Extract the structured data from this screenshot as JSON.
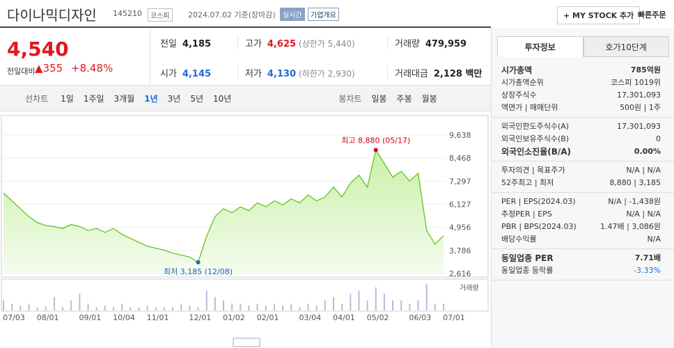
{
  "header": {
    "name": "다이나믹디자인",
    "code": "145210",
    "market": "코스피",
    "date": "2024.07.02 기준(장마감)",
    "realtime": "실시간",
    "company": "기업개요",
    "mystock": "+ MY STOCK 추가",
    "quick": "빠른주문"
  },
  "price": {
    "now": "4,540",
    "change_label": "전일대비",
    "change": "355",
    "pct": "+8.48%"
  },
  "quotes": [
    {
      "label": "전일",
      "value": "4,185"
    },
    {
      "label": "고가",
      "value": "4,625",
      "extra": "(상한가 5,440)"
    },
    {
      "label": "거래량",
      "value": "479,959"
    },
    {
      "label": "시가",
      "value": "4,145"
    },
    {
      "label": "저가",
      "value": "4,130",
      "extra": "(하한가 2,930)"
    },
    {
      "label": "거래대금",
      "value": "2,128 백만"
    }
  ],
  "tabs": {
    "line_label": "선차트",
    "line": [
      "1일",
      "1주일",
      "3개월",
      "1년",
      "3년",
      "5년",
      "10년"
    ],
    "candle_label": "봉차트",
    "candle": [
      "일봉",
      "주봉",
      "월봉"
    ]
  },
  "chart_data": {
    "type": "line",
    "color": "#63c322",
    "categories": [
      "07/03",
      null,
      null,
      null,
      "08/01",
      null,
      null,
      null,
      null,
      "09/01",
      null,
      null,
      null,
      "10/04",
      null,
      null,
      null,
      "11/01",
      null,
      null,
      null,
      null,
      "12/01",
      null,
      null,
      null,
      "01/02",
      null,
      null,
      null,
      "02/01",
      null,
      null,
      null,
      null,
      "03/04",
      null,
      null,
      null,
      "04/01",
      null,
      null,
      null,
      "05/02",
      null,
      null,
      null,
      null,
      "06/03",
      null,
      null,
      null,
      "07/01"
    ],
    "values": [
      6700,
      6300,
      5900,
      5500,
      5200,
      5050,
      5000,
      4900,
      5100,
      5000,
      4800,
      4900,
      4700,
      4900,
      4600,
      4400,
      4200,
      4000,
      3900,
      3800,
      3650,
      3550,
      3450,
      3185,
      4500,
      5500,
      5900,
      5700,
      6000,
      5800,
      6200,
      6000,
      6300,
      6100,
      6400,
      6200,
      6600,
      6300,
      6500,
      7000,
      6500,
      7200,
      7600,
      7000,
      8880,
      8200,
      7500,
      7800,
      7300,
      7700,
      4800,
      4100,
      4540
    ],
    "volume": [
      3,
      2,
      1.5,
      2,
      1,
      1.2,
      4,
      1,
      3,
      5,
      2,
      1,
      1.5,
      1,
      2,
      1,
      1,
      1.5,
      1,
      1,
      1,
      2,
      1.5,
      1,
      6,
      4,
      3,
      2,
      2,
      1.5,
      2,
      1.5,
      2,
      1.5,
      2,
      1,
      2,
      1.5,
      3,
      4,
      2,
      5,
      6,
      3,
      7,
      5,
      3,
      3,
      2,
      3,
      8,
      2,
      2
    ],
    "volume_label": "거래량",
    "ylim": [
      2616,
      9638
    ],
    "yticks": [
      {
        "value": 2616,
        "label": "2,616"
      },
      {
        "value": 3786,
        "label": "3,786"
      },
      {
        "value": 4956,
        "label": "4,956"
      },
      {
        "value": 6127,
        "label": "6,127"
      },
      {
        "value": 7297,
        "label": "7,297"
      },
      {
        "value": 8468,
        "label": "8,468"
      },
      {
        "value": 9638,
        "label": "9,638"
      }
    ],
    "annotations": {
      "high": "최고 8,880 (05/17)",
      "low": "최저 3,185 (12/08)"
    }
  },
  "invest": {
    "tabs": [
      "투자정보",
      "호가10단계"
    ],
    "sections": [
      [
        {
          "label": "시가총액",
          "value": "785억원",
          "bold": true
        },
        {
          "label": "시가총액순위",
          "value": "코스피 1019위"
        },
        {
          "label": "상장주식수",
          "value": "17,301,093"
        },
        {
          "label": "액면가 | 매매단위",
          "value": "500원 | 1주"
        }
      ],
      [
        {
          "label": "외국인한도주식수(A)",
          "value": "17,301,093"
        },
        {
          "label": "외국인보유주식수(B)",
          "value": "0"
        },
        {
          "label": "외국인소진율(B/A)",
          "value": "0.00%",
          "bold": true
        }
      ],
      [
        {
          "label": "투자의견 | 목표주가",
          "value": "N/A | N/A"
        },
        {
          "label": "52주최고 | 최저",
          "value": "8,880 | 3,185"
        }
      ],
      [
        {
          "label": "PER | EPS(2024.03)",
          "value": "N/A | -1,438원"
        },
        {
          "label": "추정PER | EPS",
          "value": "N/A | N/A"
        },
        {
          "label": "PBR | BPS(2024.03)",
          "value": "1.47배 | 3,086원"
        },
        {
          "label": "배당수익률",
          "value": "N/A"
        }
      ],
      [
        {
          "label": "동일업종 PER",
          "value": "7.71배",
          "bold": true
        },
        {
          "label": "동일업종 등락률",
          "value": "-3.33%",
          "blue": true
        }
      ]
    ]
  }
}
